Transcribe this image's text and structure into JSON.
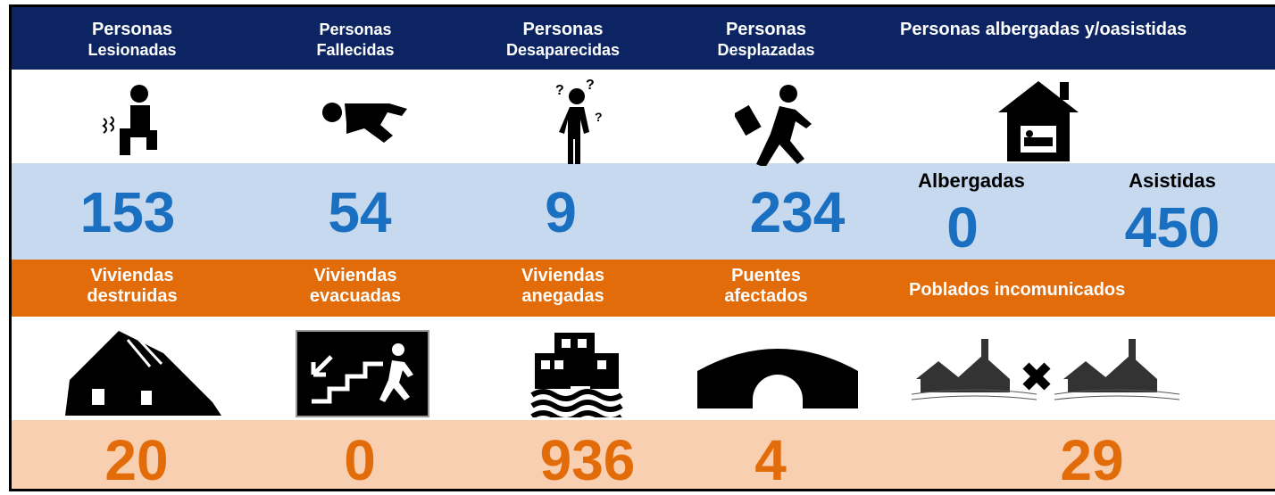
{
  "people": [
    {
      "title": [
        "Personas",
        "Lesionadas"
      ],
      "value": 153
    },
    {
      "title": [
        "Personas",
        "Fallecidas"
      ],
      "value": 54
    },
    {
      "title": [
        "Personas",
        "Desaparecidas"
      ],
      "value": 9
    },
    {
      "title": [
        "Personas",
        "Desplazadas"
      ],
      "value": 234
    }
  ],
  "shelter": {
    "title": "Personas albergadas y/oasistidas",
    "items": [
      {
        "label": "Albergadas",
        "value": 0
      },
      {
        "label": "Asistidas",
        "value": 450
      }
    ]
  },
  "housing": [
    {
      "title": [
        "Viviendas",
        "destruidas"
      ],
      "value": 20
    },
    {
      "title": [
        "Viviendas",
        "evacuadas"
      ],
      "value": 0
    },
    {
      "title": [
        "Viviendas",
        "anegadas"
      ],
      "value": 936
    },
    {
      "title": [
        "Puentes",
        "afectados"
      ],
      "value": 4
    },
    {
      "title": [
        "Poblados incomunicados"
      ],
      "value": 29
    }
  ]
}
